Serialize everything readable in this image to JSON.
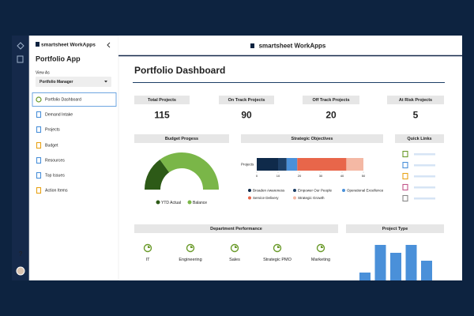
{
  "sidebar": {
    "brand": "smartsheet WorkApps",
    "app_title": "Portfolio App",
    "view_as_label": "View As",
    "view_as_value": "Portfolio Manager",
    "nav": [
      "Portfolio Dashboard",
      "Demand Intake",
      "Projects",
      "Budget",
      "Resources",
      "Top Issues",
      "Action Items"
    ],
    "help": "?"
  },
  "header": {
    "brand": "smartsheet WorkApps",
    "page_title": "Portfolio Dashboard"
  },
  "kpis": [
    {
      "label": "Total Projects",
      "value": 115,
      "color": "#4a90d9"
    },
    {
      "label": "On Track Projects",
      "value": 90,
      "color": "#6a9a2a"
    },
    {
      "label": "Off Track Projects",
      "value": 20,
      "color": "#e8a317"
    },
    {
      "label": "At Risk Projects",
      "value": 5,
      "color": "#d0421b"
    }
  ],
  "budget": {
    "type": "donut",
    "title": "Budget Progess",
    "series": [
      {
        "name": "YTD Actual",
        "color": "#2d5a17",
        "value": 30
      },
      {
        "name": "Balance",
        "color": "#7ab648",
        "value": 70
      }
    ]
  },
  "objectives": {
    "type": "stacked-bar",
    "title": "Strategic Objectives",
    "categories": [
      "Projects"
    ],
    "series": [
      {
        "name": "Broaden Awareness",
        "color": "#0f2a4a",
        "values": [
          10
        ]
      },
      {
        "name": "Empower Our People",
        "color": "#1d3f66",
        "values": [
          4
        ]
      },
      {
        "name": "Operational Excellence",
        "color": "#4a90d9",
        "values": [
          5
        ]
      },
      {
        "name": "Service Delivery",
        "color": "#e8664a",
        "values": [
          23
        ]
      },
      {
        "name": "Strategic Growth",
        "color": "#f4b8a4",
        "values": [
          8
        ]
      }
    ],
    "xlim": [
      0,
      50
    ],
    "xticks": [
      0,
      10,
      20,
      30,
      40,
      50
    ]
  },
  "quick_links": {
    "title": "Quick Links"
  },
  "departments": {
    "title": "Department Performance",
    "items": [
      "IT",
      "Engineering",
      "Sales",
      "Strategic PMO",
      "Marketing"
    ]
  },
  "project_type": {
    "type": "bar",
    "title": "Project Type",
    "color": "#4a90d9",
    "values": [
      3,
      10,
      8,
      10,
      6
    ]
  }
}
